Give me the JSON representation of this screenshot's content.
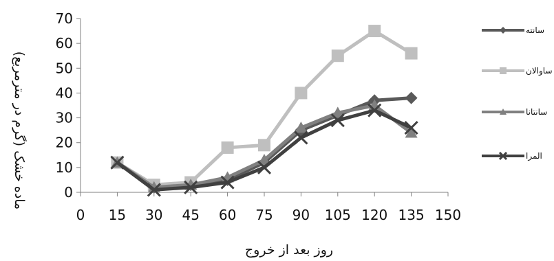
{
  "chart_data": {
    "type": "line",
    "title": "",
    "xlabel": "روز بعد از خروج",
    "ylabel": "ماده خشک (گرم در مترمربع)",
    "xlim": [
      0,
      150
    ],
    "ylim": [
      0,
      70
    ],
    "x_ticks": [
      0,
      15,
      30,
      45,
      60,
      75,
      90,
      105,
      120,
      135,
      150
    ],
    "y_ticks": [
      0,
      10,
      20,
      30,
      40,
      50,
      60,
      70
    ],
    "grid": false,
    "legend_position": "right",
    "x": [
      15,
      30,
      45,
      60,
      75,
      90,
      105,
      120,
      135
    ],
    "series": [
      {
        "name": "سانته",
        "marker": "diamond",
        "color": "#595959",
        "values": [
          12,
          2,
          3,
          5,
          12,
          25,
          31,
          37,
          38
        ]
      },
      {
        "name": "ساوالان",
        "marker": "square",
        "color": "#bfbfbf",
        "values": [
          12,
          3,
          4,
          18,
          19,
          40,
          55,
          65,
          56
        ]
      },
      {
        "name": "سانتانا",
        "marker": "triangle",
        "color": "#808080",
        "values": [
          12,
          2,
          3,
          6,
          13,
          26,
          32,
          35,
          24
        ]
      },
      {
        "name": "المرا",
        "marker": "x",
        "color": "#404040",
        "values": [
          12,
          1,
          2,
          4,
          10,
          22,
          29,
          33,
          26
        ]
      }
    ]
  }
}
